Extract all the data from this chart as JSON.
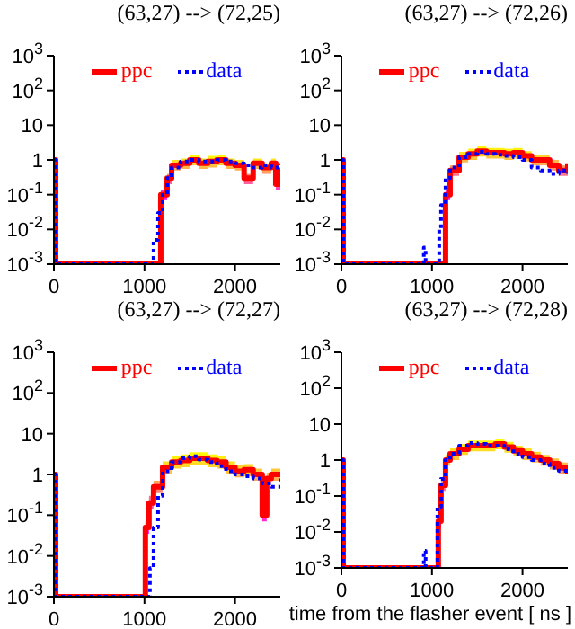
{
  "chart_data": [
    {
      "type": "step",
      "title": "(63,27) --> (72,25)",
      "log": "y",
      "legend": "top",
      "grid": false,
      "xlim": [
        0,
        2500
      ],
      "xticks": [
        0,
        1000,
        2000
      ],
      "ylim": [
        0.001,
        1000
      ],
      "yticks": [
        {
          "value": 0.001,
          "label": "10$^{-3}$"
        },
        {
          "value": 0.01,
          "label": "10$^{-2}$"
        },
        {
          "value": 0.1,
          "label": "10$^{-1}$"
        },
        {
          "value": 1,
          "label": "1"
        },
        {
          "value": 10,
          "label": "10"
        },
        {
          "value": 100,
          "label": "10$^{2}$"
        },
        {
          "value": 1000,
          "label": "10$^{3}$"
        }
      ],
      "series": [
        {
          "name": "ppc",
          "color": "#ff0000",
          "line_style": "solid",
          "x": [
            0,
            20,
            1160,
            1180,
            1250,
            1300,
            1400,
            1500,
            1600,
            1700,
            1800,
            1900,
            2000,
            2100,
            2200,
            2300,
            2400,
            2450,
            2500
          ],
          "values": [
            1,
            0.001,
            0.001,
            0.1,
            0.3,
            0.7,
            0.8,
            1.0,
            0.8,
            0.9,
            1.0,
            0.8,
            0.7,
            0.3,
            0.8,
            0.6,
            0.8,
            0.2,
            0.6
          ],
          "upper": [
            null,
            null,
            null,
            0.14,
            0.4,
            1,
            1.1,
            1.4,
            1.1,
            1.3,
            1.4,
            1.1,
            1,
            0.4,
            1.1,
            0.8,
            1.1,
            0.3,
            0.8
          ],
          "lower": [
            null,
            null,
            null,
            0.07,
            0.2,
            0.5,
            0.55,
            0.7,
            0.55,
            0.6,
            0.7,
            0.55,
            0.5,
            0.2,
            0.55,
            0.4,
            0.55,
            0.14,
            0.4
          ]
        },
        {
          "name": "data",
          "color": "#0000ff",
          "line_style": "dotted",
          "x": [
            0,
            20,
            1080,
            1100,
            1150,
            1200,
            1250,
            1300,
            1400,
            1500,
            1600,
            1700,
            1800,
            1900,
            2000,
            2100,
            2200,
            2300,
            2400,
            2500
          ],
          "values": [
            1,
            0.001,
            0.001,
            0.005,
            0.03,
            0.1,
            0.3,
            0.6,
            0.9,
            1.0,
            0.9,
            0.9,
            1.0,
            0.9,
            0.8,
            0.7,
            0.6,
            0.7,
            0.6,
            0.8
          ]
        }
      ]
    },
    {
      "type": "step",
      "title": "(63,27) --> (72,26)",
      "log": "y",
      "legend": "top",
      "grid": false,
      "xlim": [
        0,
        2500
      ],
      "xticks": [
        0,
        1000,
        2000
      ],
      "ylim": [
        0.001,
        1000
      ],
      "yticks": [
        {
          "value": 0.001,
          "label": "10$^{-3}$"
        },
        {
          "value": 0.01,
          "label": "10$^{-2}$"
        },
        {
          "value": 0.1,
          "label": "10$^{-1}$"
        },
        {
          "value": 1,
          "label": "1"
        },
        {
          "value": 10,
          "label": "10"
        },
        {
          "value": 100,
          "label": "10$^{2}$"
        },
        {
          "value": 1000,
          "label": "10$^{3}$"
        }
      ],
      "series": [
        {
          "name": "ppc",
          "color": "#ff0000",
          "line_style": "solid",
          "x": [
            0,
            20,
            1140,
            1150,
            1200,
            1300,
            1400,
            1500,
            1600,
            1700,
            1800,
            1900,
            2000,
            2100,
            2200,
            2300,
            2400,
            2500
          ],
          "values": [
            1,
            0.001,
            0.001,
            0.1,
            0.5,
            1.2,
            1.5,
            1.8,
            1.6,
            1.6,
            1.5,
            1.6,
            1.3,
            1.0,
            1.0,
            0.7,
            0.5,
            0.8
          ],
          "upper": [
            null,
            null,
            null,
            0.14,
            0.7,
            1.7,
            2.1,
            2.5,
            2.2,
            2.2,
            2.1,
            2.2,
            1.8,
            1.4,
            1.4,
            1,
            0.7,
            1.1
          ],
          "lower": [
            null,
            null,
            null,
            0.07,
            0.35,
            0.85,
            1,
            1.25,
            1.1,
            1.1,
            1,
            1.1,
            0.9,
            0.7,
            0.7,
            0.5,
            0.35,
            0.55
          ]
        },
        {
          "name": "data",
          "color": "#0000ff",
          "line_style": "dotted",
          "x": [
            0,
            20,
            900,
            910,
            930,
            1050,
            1080,
            1100,
            1150,
            1200,
            1300,
            1400,
            1500,
            1600,
            1700,
            1800,
            1900,
            2000,
            2100,
            2200,
            2300,
            2400,
            2500
          ],
          "values": [
            1,
            0.001,
            0.001,
            0.003,
            0.001,
            0.001,
            0.01,
            0.05,
            0.3,
            0.6,
            1.2,
            1.5,
            1.7,
            1.5,
            1.4,
            1.3,
            1.2,
            1.0,
            0.6,
            0.5,
            0.4,
            0.5,
            0.4
          ]
        }
      ]
    },
    {
      "type": "step",
      "title": "(63,27) --> (72,27)",
      "log": "y",
      "legend": "top",
      "grid": false,
      "xlim": [
        0,
        2500
      ],
      "xticks": [
        0,
        1000,
        2000
      ],
      "ylim": [
        0.001,
        1000
      ],
      "yticks": [
        {
          "value": 0.001,
          "label": "10$^{-3}$"
        },
        {
          "value": 0.01,
          "label": "10$^{-2}$"
        },
        {
          "value": 0.1,
          "label": "10$^{-1}$"
        },
        {
          "value": 1,
          "label": "1"
        },
        {
          "value": 10,
          "label": "10"
        },
        {
          "value": 100,
          "label": "10$^{2}$"
        },
        {
          "value": 1000,
          "label": "10$^{3}$"
        }
      ],
      "series": [
        {
          "name": "ppc",
          "color": "#ff0000",
          "line_style": "solid",
          "x": [
            0,
            20,
            1000,
            1010,
            1050,
            1100,
            1200,
            1300,
            1400,
            1500,
            1600,
            1700,
            1800,
            1900,
            2000,
            2100,
            2200,
            2300,
            2350,
            2400,
            2500
          ],
          "values": [
            1,
            0.001,
            0.001,
            0.05,
            0.2,
            0.5,
            1.5,
            2.0,
            2.2,
            2.5,
            2.5,
            2.2,
            2.0,
            1.5,
            1.2,
            1.3,
            1.0,
            0.1,
            0.8,
            1.0,
            0.9
          ],
          "upper": [
            null,
            null,
            null,
            0.07,
            0.3,
            0.7,
            2.1,
            2.8,
            3.1,
            3.5,
            3.5,
            3.1,
            2.8,
            2.1,
            1.7,
            1.8,
            1.4,
            0.14,
            1.1,
            1.4,
            1.3
          ],
          "lower": [
            null,
            null,
            null,
            0.035,
            0.14,
            0.35,
            1,
            1.4,
            1.5,
            1.75,
            1.75,
            1.5,
            1.4,
            1,
            0.85,
            0.9,
            0.7,
            0.07,
            0.55,
            0.7,
            0.6
          ]
        },
        {
          "name": "data",
          "color": "#0000ff",
          "line_style": "dotted",
          "x": [
            0,
            20,
            1030,
            1060,
            1100,
            1150,
            1200,
            1300,
            1400,
            1500,
            1600,
            1700,
            1800,
            1900,
            2000,
            2100,
            2200,
            2300,
            2400,
            2500
          ],
          "values": [
            1,
            0.001,
            0.001,
            0.005,
            0.05,
            0.3,
            1.2,
            2.0,
            2.5,
            2.8,
            2.3,
            2.0,
            1.6,
            1.2,
            1.0,
            0.9,
            0.8,
            0.6,
            0.5,
            0.8
          ]
        }
      ]
    },
    {
      "type": "step",
      "title": "(63,27) --> (72,28)",
      "xlabel": "time from the flasher event [ ns ]",
      "log": "y",
      "legend": "top",
      "grid": false,
      "xlim": [
        0,
        2500
      ],
      "xticks": [
        0,
        1000,
        2000
      ],
      "ylim": [
        0.001,
        1000
      ],
      "yticks": [
        {
          "value": 0.001,
          "label": "10$^{-3}$"
        },
        {
          "value": 0.01,
          "label": "10$^{-2}$"
        },
        {
          "value": 0.1,
          "label": "10$^{-1}$"
        },
        {
          "value": 1,
          "label": "1"
        },
        {
          "value": 10,
          "label": "10"
        },
        {
          "value": 100,
          "label": "10$^{2}$"
        },
        {
          "value": 1000,
          "label": "10$^{3}$"
        }
      ],
      "series": [
        {
          "name": "ppc",
          "color": "#ff0000",
          "line_style": "solid",
          "x": [
            0,
            20,
            1060,
            1070,
            1100,
            1150,
            1200,
            1300,
            1400,
            1500,
            1600,
            1700,
            1800,
            1900,
            2000,
            2100,
            2200,
            2300,
            2400,
            2500
          ],
          "values": [
            1,
            0.001,
            0.001,
            0.02,
            0.2,
            1.0,
            1.5,
            2.0,
            2.5,
            2.5,
            2.5,
            2.8,
            2.3,
            1.8,
            1.5,
            1.2,
            1.0,
            0.8,
            0.6,
            0.4
          ],
          "upper": [
            null,
            null,
            null,
            0.03,
            0.3,
            1.4,
            2.1,
            2.8,
            3.5,
            3.5,
            3.5,
            3.9,
            3.2,
            2.5,
            2.1,
            1.7,
            1.4,
            1.1,
            0.85,
            0.55
          ],
          "lower": [
            null,
            null,
            null,
            0.014,
            0.14,
            0.7,
            1,
            1.4,
            1.75,
            1.75,
            1.75,
            2,
            1.6,
            1.25,
            1,
            0.85,
            0.7,
            0.55,
            0.42,
            0.28
          ]
        },
        {
          "name": "data",
          "color": "#0000ff",
          "line_style": "dotted",
          "x": [
            0,
            20,
            900,
            910,
            930,
            1050,
            1060,
            1100,
            1150,
            1200,
            1300,
            1400,
            1500,
            1600,
            1700,
            1800,
            1900,
            2000,
            2100,
            2200,
            2300,
            2400,
            2500
          ],
          "values": [
            1,
            0.001,
            0.001,
            0.003,
            0.001,
            0.001,
            0.05,
            0.3,
            1.0,
            1.5,
            2.5,
            3.0,
            2.8,
            2.5,
            2.5,
            2.0,
            1.5,
            1.2,
            1.0,
            0.8,
            0.6,
            0.5,
            0.5
          ]
        }
      ]
    }
  ]
}
